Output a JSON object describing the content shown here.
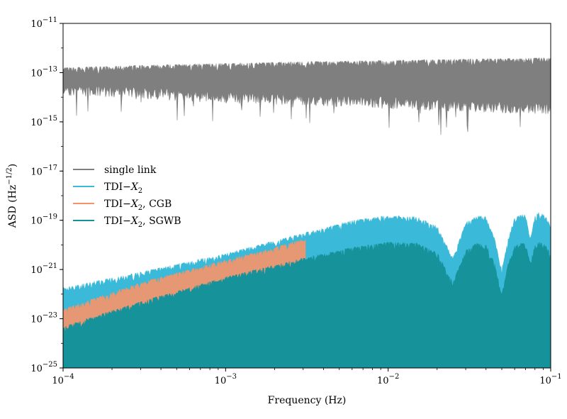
{
  "chart_data": {
    "type": "line",
    "title": "",
    "xlabel": "Frequency (Hz)",
    "ylabel": "ASD (Hz⁻¹ᐟ²)",
    "xscale": "log",
    "yscale": "log",
    "xlim": [
      0.0001,
      0.1
    ],
    "ylim": [
      1e-25,
      1e-11
    ],
    "grid": false,
    "legend_placement": "center-left",
    "x_ticks": [
      {
        "value": 0.0001,
        "base": "10",
        "exp": "−4"
      },
      {
        "value": 0.001,
        "base": "10",
        "exp": "−3"
      },
      {
        "value": 0.01,
        "base": "10",
        "exp": "−2"
      },
      {
        "value": 0.1,
        "base": "10",
        "exp": "−1"
      }
    ],
    "y_ticks": [
      {
        "value": 1e-11,
        "base": "10",
        "exp": "−11"
      },
      {
        "value": 1e-13,
        "base": "10",
        "exp": "−13"
      },
      {
        "value": 1e-15,
        "base": "10",
        "exp": "−15"
      },
      {
        "value": 1e-17,
        "base": "10",
        "exp": "−17"
      },
      {
        "value": 1e-19,
        "base": "10",
        "exp": "−19"
      },
      {
        "value": 1e-21,
        "base": "10",
        "exp": "−21"
      },
      {
        "value": 1e-23,
        "base": "10",
        "exp": "−23"
      },
      {
        "value": 1e-25,
        "base": "10",
        "exp": "−25"
      }
    ],
    "series": [
      {
        "name": "single link",
        "legend_parts": [
          {
            "t": "single link",
            "i": false
          }
        ],
        "color": "#7f7f7f",
        "style": "band",
        "x": [
          0.0001,
          0.0003,
          0.001,
          0.003,
          0.01,
          0.03,
          0.1
        ],
        "y_upper": [
          1.6e-13,
          2e-13,
          2.4e-13,
          2.8e-13,
          3.2e-13,
          3.6e-13,
          4e-13
        ],
        "y_lower": [
          2e-14,
          1.5e-14,
          1e-14,
          8e-15,
          6e-15,
          4.5e-15,
          3.5e-15
        ]
      },
      {
        "name": "TDI−X2",
        "legend_parts": [
          {
            "t": "TDI−",
            "i": false
          },
          {
            "t": "X",
            "i": true
          },
          {
            "t": "2",
            "i": false,
            "sub": true
          }
        ],
        "color": "#3bb9d8",
        "style": "band",
        "x": [
          0.0001,
          0.0003,
          0.001,
          0.003,
          0.006,
          0.01,
          0.015,
          0.02,
          0.025,
          0.03,
          0.035,
          0.04,
          0.045,
          0.05,
          0.055,
          0.06,
          0.065,
          0.07,
          0.075,
          0.08,
          0.085,
          0.09,
          0.095,
          0.1
        ],
        "y_upper": [
          1.8e-22,
          8e-22,
          4.5e-21,
          3e-20,
          1e-19,
          1.6e-19,
          1.4e-19,
          6e-20,
          3e-21,
          8e-20,
          1.6e-19,
          1.4e-19,
          2e-20,
          1e-21,
          2e-20,
          1.4e-19,
          1.8e-19,
          1.6e-19,
          2e-20,
          1.5e-19,
          2.2e-19,
          2e-19,
          1.2e-19,
          5e-20
        ],
        "y_lower": [
          1e-25,
          1e-25,
          1e-25,
          1e-25,
          1e-25,
          1e-25,
          1e-25,
          1e-25,
          1e-25,
          1e-25,
          1e-25,
          1e-25,
          1e-25,
          1e-25,
          1e-25,
          1e-25,
          1e-25,
          1e-25,
          1e-25,
          1e-25,
          1e-25,
          1e-25,
          1e-25,
          1e-25
        ]
      },
      {
        "name": "TDI−X2, CGB",
        "legend_parts": [
          {
            "t": "TDI−",
            "i": false
          },
          {
            "t": "X",
            "i": true
          },
          {
            "t": "2",
            "i": false,
            "sub": true
          },
          {
            "t": ", CGB",
            "i": false
          }
        ],
        "color": "#f5946a",
        "style": "band",
        "x": [
          0.0001,
          0.0003,
          0.001,
          0.002,
          0.003,
          0.0031
        ],
        "y_upper": [
          2.5e-23,
          3e-22,
          2.5e-21,
          8e-21,
          1.8e-20,
          1.6e-20
        ],
        "y_lower": [
          1e-25,
          1e-25,
          1e-25,
          1e-25,
          1e-25,
          1e-25
        ]
      },
      {
        "name": "TDI−X2, SGWB",
        "legend_parts": [
          {
            "t": "TDI−",
            "i": false
          },
          {
            "t": "X",
            "i": true
          },
          {
            "t": "2",
            "i": false,
            "sub": true
          },
          {
            "t": ", SGWB",
            "i": false
          }
        ],
        "color": "#16929a",
        "style": "band",
        "x": [
          0.0001,
          0.0003,
          0.001,
          0.003,
          0.006,
          0.01,
          0.015,
          0.02,
          0.025,
          0.03,
          0.035,
          0.04,
          0.045,
          0.05,
          0.055,
          0.06,
          0.065,
          0.07,
          0.075,
          0.08,
          0.085,
          0.09,
          0.095,
          0.1
        ],
        "y_upper": [
          5e-24,
          5e-23,
          5e-22,
          3e-21,
          8e-21,
          1.3e-20,
          1.2e-20,
          5e-21,
          3e-22,
          6e-21,
          1.2e-20,
          1e-20,
          2e-21,
          1e-22,
          2e-21,
          9e-21,
          1.2e-20,
          1.1e-20,
          2e-21,
          1e-20,
          1.3e-20,
          1.2e-20,
          8e-21,
          4e-21
        ],
        "y_lower": [
          1e-25,
          1e-25,
          1e-25,
          1e-25,
          1e-25,
          1e-25,
          1e-25,
          1e-25,
          1e-25,
          1e-25,
          1e-25,
          1e-25,
          1e-25,
          1e-25,
          1e-25,
          1e-25,
          1e-25,
          1e-25,
          1e-25,
          1e-25,
          1e-25,
          1e-25,
          1e-25,
          1e-25
        ]
      }
    ]
  }
}
